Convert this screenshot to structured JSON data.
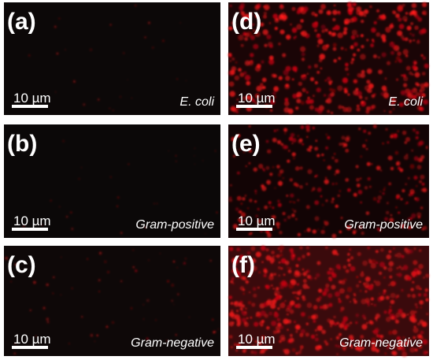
{
  "panels": [
    {
      "label": "(a)",
      "scale": "10 µm",
      "caption": "E. coli"
    },
    {
      "label": "(b)",
      "scale": "10 µm",
      "caption": "Gram-positive"
    },
    {
      "label": "(c)",
      "scale": "10 µm",
      "caption": "Gram-negative"
    },
    {
      "label": "(d)",
      "scale": "10 µm",
      "caption": "E. coli"
    },
    {
      "label": "(e)",
      "scale": "10 µm",
      "caption": "Gram-positive"
    },
    {
      "label": "(f)",
      "scale": "10 µm",
      "caption": "Gram-negative"
    }
  ]
}
